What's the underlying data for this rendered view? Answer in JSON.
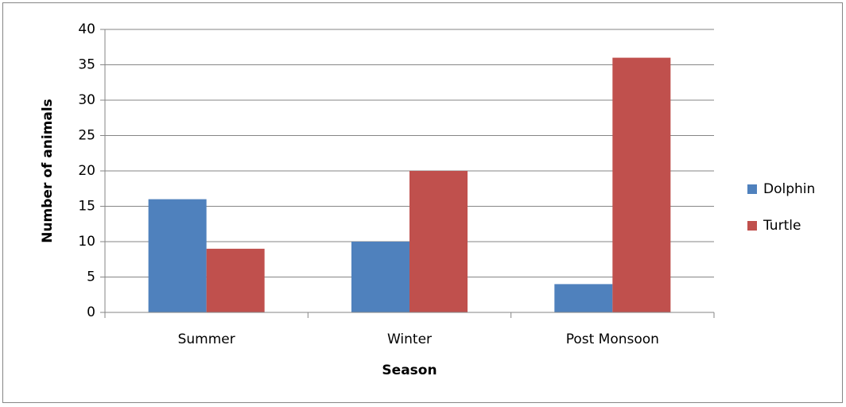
{
  "chart_data": {
    "type": "bar",
    "categories": [
      "Summer",
      "Winter",
      "Post Monsoon"
    ],
    "series": [
      {
        "name": "Dolphin",
        "color": "#4f81bd",
        "values": [
          16,
          10,
          4
        ]
      },
      {
        "name": "Turtle",
        "color": "#c0504d",
        "values": [
          9,
          20,
          36
        ]
      }
    ],
    "ylim": [
      0,
      40
    ],
    "yticks": [
      0,
      5,
      10,
      15,
      20,
      25,
      30,
      35,
      40
    ],
    "xlabel": "Season",
    "ylabel": "Number of animals",
    "grid": true,
    "legend": "right"
  }
}
